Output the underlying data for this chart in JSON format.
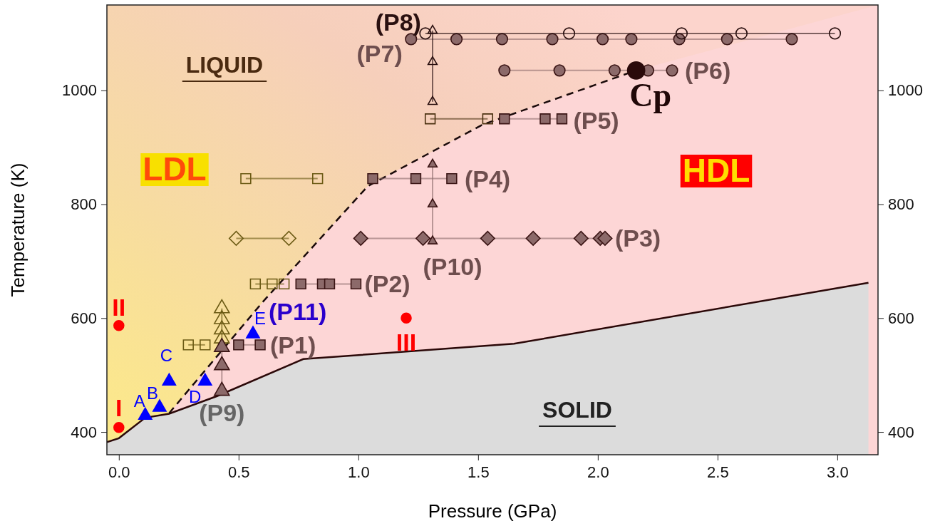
{
  "chart_data": {
    "type": "line",
    "xlabel": "Pressure (GPa)",
    "ylabel": "Temperature (K)",
    "xlim": [
      -0.05,
      3.17
    ],
    "ylim": [
      360,
      1150
    ],
    "y2lim": [
      360,
      1150
    ],
    "xticks": [
      {
        "value": 0,
        "label": "0.0"
      },
      {
        "value": 0.5,
        "label": "0.5"
      },
      {
        "value": 1,
        "label": "1.0"
      },
      {
        "value": 1.5,
        "label": "1.5"
      },
      {
        "value": 2,
        "label": "2.0"
      },
      {
        "value": 2.5,
        "label": "2.5"
      },
      {
        "value": 3,
        "label": "3.0"
      }
    ],
    "yticks": [
      400,
      600,
      800,
      1000
    ],
    "y2ticks": [
      400,
      600,
      800,
      1000
    ],
    "grid": false,
    "legend": false,
    "series": [
      {
        "type": "area",
        "color": "#dcdcdc",
        "x": [
          -0.05,
          0.0,
          0.11,
          0.21,
          0.41,
          0.77,
          1.65,
          3.13
        ],
        "values": [
          382,
          389,
          425,
          432,
          463,
          528,
          555,
          662
        ]
      },
      {
        "color": "#1a0a0a",
        "marker": "none",
        "line_style": "dashed",
        "x": [
          0.21,
          0.6,
          1.04,
          1.52,
          2.16
        ],
        "values": [
          433,
          628,
          832,
          940,
          1035
        ]
      },
      {
        "color": "#6b5a14",
        "marker": "square",
        "x": [
          0.29,
          0.36
        ],
        "values": [
          553,
          553
        ]
      },
      {
        "name": "(P1)",
        "color": "#8c6a6a",
        "marker": "square",
        "x": [
          0.5,
          0.59
        ],
        "values": [
          553,
          553
        ]
      },
      {
        "color": "#6b5a14",
        "marker": "square",
        "x": [
          0.57,
          0.64,
          0.69
        ],
        "values": [
          660,
          660,
          660
        ]
      },
      {
        "name": "(P2)",
        "color": "#8c6a6a",
        "marker": "square",
        "x": [
          0.76,
          0.85,
          0.88,
          0.99
        ],
        "values": [
          660,
          660,
          660,
          660
        ]
      },
      {
        "color": "#6b5a14",
        "marker": "diamond",
        "x": [
          0.49,
          0.71
        ],
        "values": [
          740,
          740
        ]
      },
      {
        "name": "(P3)",
        "color": "#8c6a6a",
        "marker": "diamond",
        "x": [
          1.01,
          1.27,
          1.54,
          1.73,
          1.93,
          2.01,
          2.03
        ],
        "values": [
          740,
          740,
          740,
          740,
          740,
          740,
          740
        ]
      },
      {
        "color": "#6b5a14",
        "marker": "square",
        "x": [
          0.53,
          0.83
        ],
        "values": [
          845,
          845
        ]
      },
      {
        "name": "(P4)",
        "color": "#8c6a6a",
        "marker": "square",
        "x": [
          1.06,
          1.24,
          1.39
        ],
        "values": [
          845,
          845,
          845
        ]
      },
      {
        "color": "#4a3010",
        "marker": "square",
        "x": [
          1.3,
          1.54
        ],
        "values": [
          950,
          950
        ]
      },
      {
        "name": "(P5)",
        "color": "#8c6a6a",
        "marker": "square",
        "x": [
          1.61,
          1.78,
          1.85
        ],
        "values": [
          950,
          950,
          950
        ]
      },
      {
        "name": "(P6)",
        "color": "#8c6a6a",
        "marker": "circle",
        "x": [
          1.61,
          1.84,
          2.07,
          2.21,
          2.31
        ],
        "values": [
          1035,
          1035,
          1035,
          1035,
          1035
        ]
      },
      {
        "name": "(P7)",
        "color": "#8c6a6a",
        "marker": "circle",
        "x": [
          1.22,
          1.41,
          1.6,
          1.81,
          2.02,
          2.14,
          2.34,
          2.54,
          2.81
        ],
        "values": [
          1090,
          1090,
          1090,
          1090,
          1090,
          1090,
          1090,
          1090,
          1090
        ]
      },
      {
        "name": "(P8)",
        "color": "#2a1010",
        "marker": "circle",
        "x": [
          1.28,
          1.88,
          2.35,
          2.6,
          2.99
        ],
        "values": [
          1100,
          1100,
          1100,
          1100,
          1100
        ]
      },
      {
        "color": "#6b5a14",
        "marker": "triangle",
        "x": [
          0.43,
          0.43,
          0.43,
          0.43
        ],
        "values": [
          617,
          598,
          580,
          564
        ]
      },
      {
        "name": "(P9)",
        "color": "#8c6a6a",
        "marker": "triangle",
        "x": [
          0.43,
          0.43,
          0.43
        ],
        "values": [
          549,
          517,
          472
        ]
      },
      {
        "color": "#2a1010",
        "marker": "triangle",
        "x": [
          1.31,
          1.31,
          1.31
        ],
        "values": [
          1105,
          1050,
          980
        ]
      },
      {
        "name": "(P10)",
        "color": "#8c6a6a",
        "marker": "triangle",
        "x": [
          1.31,
          1.31,
          1.31
        ],
        "values": [
          870,
          800,
          735
        ]
      },
      {
        "name": "(P11)",
        "type": "scatter",
        "color": "#0000ff",
        "marker": "triangle",
        "x": [
          0.11,
          0.17,
          0.21,
          0.36,
          0.56
        ],
        "values": [
          429,
          443,
          489,
          489,
          572
        ]
      },
      {
        "type": "scatter",
        "color": "#2a0a0a",
        "marker": "circle",
        "x": [
          2.16
        ],
        "values": [
          1035
        ]
      },
      {
        "type": "scatter",
        "color": "#ff0000",
        "marker": "circle",
        "x": [
          0.0,
          0.0,
          1.2
        ],
        "values": [
          408,
          587,
          600
        ]
      }
    ],
    "annotations": [
      "LIQUID",
      "LDL",
      "HDL",
      "SOLID",
      {
        "text": "Cp",
        "x": 2.16,
        "y": 1035
      },
      {
        "text": "A",
        "x": 0.11,
        "y": 429
      },
      {
        "text": "B",
        "x": 0.17,
        "y": 443
      },
      {
        "text": "C",
        "x": 0.21,
        "y": 489
      },
      {
        "text": "D",
        "x": 0.36,
        "y": 489
      },
      {
        "text": "E",
        "x": 0.56,
        "y": 572
      },
      {
        "text": "I",
        "x": 0.0,
        "y": 408
      },
      {
        "text": "II",
        "x": 0.0,
        "y": 587
      },
      {
        "text": "III",
        "x": 1.2,
        "y": 600
      }
    ]
  }
}
